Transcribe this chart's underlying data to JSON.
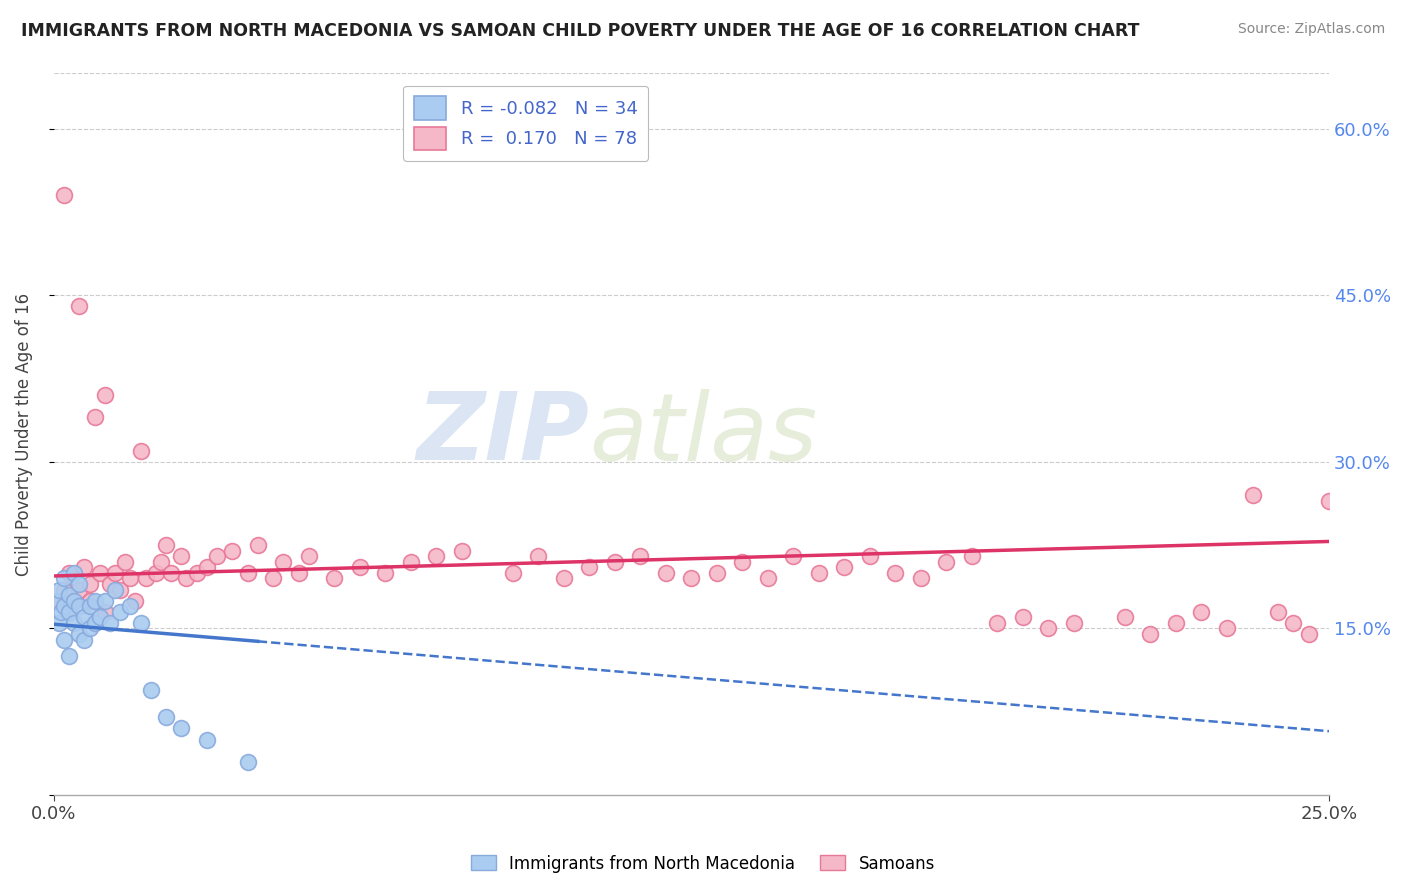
{
  "title": "IMMIGRANTS FROM NORTH MACEDONIA VS SAMOAN CHILD POVERTY UNDER THE AGE OF 16 CORRELATION CHART",
  "source": "Source: ZipAtlas.com",
  "ylabel": "Child Poverty Under the Age of 16",
  "r_blue": -0.082,
  "n_blue": 34,
  "r_pink": 0.17,
  "n_pink": 78,
  "x_min": 0.0,
  "x_max": 0.25,
  "y_min": 0.0,
  "y_max": 0.65,
  "y_ticks": [
    0.0,
    0.15,
    0.3,
    0.45,
    0.6
  ],
  "y_tick_labels": [
    "",
    "15.0%",
    "30.0%",
    "45.0%",
    "60.0%"
  ],
  "x_ticks": [
    0.0,
    0.25
  ],
  "x_tick_labels": [
    "0.0%",
    "25.0%"
  ],
  "watermark_zip": "ZIP",
  "watermark_atlas": "atlas",
  "blue_color": "#aaccf0",
  "blue_edge": "#88aadd",
  "pink_color": "#f5b8c8",
  "pink_edge": "#e87898",
  "blue_line_color": "#4477cc",
  "pink_line_color": "#dd3366",
  "legend_label_blue": "Immigrants from North Macedonia",
  "legend_label_pink": "Samoans",
  "blue_scatter_x": [
    0.0005,
    0.001,
    0.001,
    0.0015,
    0.002,
    0.002,
    0.002,
    0.003,
    0.003,
    0.003,
    0.004,
    0.004,
    0.004,
    0.005,
    0.005,
    0.005,
    0.006,
    0.006,
    0.007,
    0.007,
    0.008,
    0.008,
    0.009,
    0.01,
    0.011,
    0.012,
    0.013,
    0.015,
    0.017,
    0.019,
    0.022,
    0.025,
    0.03,
    0.038
  ],
  "blue_scatter_y": [
    0.175,
    0.185,
    0.155,
    0.165,
    0.195,
    0.17,
    0.14,
    0.18,
    0.165,
    0.125,
    0.175,
    0.155,
    0.2,
    0.17,
    0.145,
    0.19,
    0.16,
    0.14,
    0.17,
    0.15,
    0.175,
    0.155,
    0.16,
    0.175,
    0.155,
    0.185,
    0.165,
    0.17,
    0.155,
    0.095,
    0.07,
    0.06,
    0.05,
    0.03
  ],
  "pink_scatter_x": [
    0.001,
    0.002,
    0.002,
    0.003,
    0.003,
    0.004,
    0.005,
    0.005,
    0.006,
    0.007,
    0.007,
    0.008,
    0.009,
    0.01,
    0.01,
    0.011,
    0.012,
    0.013,
    0.014,
    0.015,
    0.016,
    0.017,
    0.018,
    0.02,
    0.021,
    0.022,
    0.023,
    0.025,
    0.026,
    0.028,
    0.03,
    0.032,
    0.035,
    0.038,
    0.04,
    0.043,
    0.045,
    0.048,
    0.05,
    0.055,
    0.06,
    0.065,
    0.07,
    0.075,
    0.08,
    0.09,
    0.095,
    0.1,
    0.105,
    0.11,
    0.115,
    0.12,
    0.125,
    0.13,
    0.135,
    0.14,
    0.145,
    0.15,
    0.155,
    0.16,
    0.165,
    0.17,
    0.175,
    0.18,
    0.185,
    0.19,
    0.195,
    0.2,
    0.21,
    0.215,
    0.22,
    0.225,
    0.23,
    0.235,
    0.24,
    0.243,
    0.246,
    0.25
  ],
  "pink_scatter_y": [
    0.175,
    0.185,
    0.54,
    0.2,
    0.165,
    0.175,
    0.44,
    0.185,
    0.205,
    0.19,
    0.175,
    0.34,
    0.2,
    0.165,
    0.36,
    0.19,
    0.2,
    0.185,
    0.21,
    0.195,
    0.175,
    0.31,
    0.195,
    0.2,
    0.21,
    0.225,
    0.2,
    0.215,
    0.195,
    0.2,
    0.205,
    0.215,
    0.22,
    0.2,
    0.225,
    0.195,
    0.21,
    0.2,
    0.215,
    0.195,
    0.205,
    0.2,
    0.21,
    0.215,
    0.22,
    0.2,
    0.215,
    0.195,
    0.205,
    0.21,
    0.215,
    0.2,
    0.195,
    0.2,
    0.21,
    0.195,
    0.215,
    0.2,
    0.205,
    0.215,
    0.2,
    0.195,
    0.21,
    0.215,
    0.155,
    0.16,
    0.15,
    0.155,
    0.16,
    0.145,
    0.155,
    0.165,
    0.15,
    0.27,
    0.165,
    0.155,
    0.145,
    0.265
  ]
}
